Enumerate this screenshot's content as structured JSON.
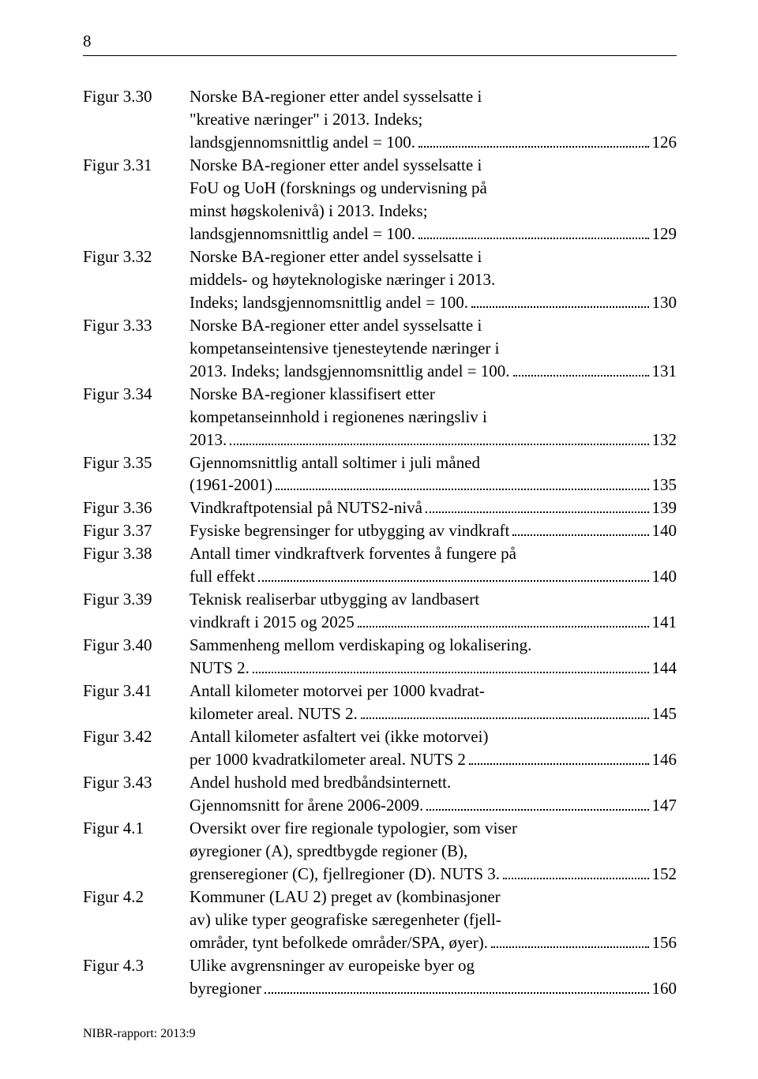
{
  "page_number": "8",
  "footer": "NIBR-rapport: 2013:9",
  "entries": [
    {
      "label": "Figur 3.30",
      "lines": [
        {
          "type": "plain",
          "text": "Norske BA-regioner etter andel sysselsatte i"
        },
        {
          "type": "plain",
          "text": "\"kreative næringer\" i 2013. Indeks;"
        },
        {
          "type": "dotted",
          "text": "landsgjennomsnittlig andel = 100.",
          "page": "126"
        }
      ]
    },
    {
      "label": "Figur 3.31",
      "lines": [
        {
          "type": "plain",
          "text": "Norske BA-regioner etter andel sysselsatte i"
        },
        {
          "type": "plain",
          "text": "FoU og UoH (forsknings og undervisning på"
        },
        {
          "type": "plain",
          "text": "minst høgskolenivå) i 2013. Indeks;"
        },
        {
          "type": "dotted",
          "text": "landsgjennomsnittlig andel = 100.",
          "page": "129"
        }
      ]
    },
    {
      "label": "Figur 3.32",
      "lines": [
        {
          "type": "plain",
          "text": "Norske BA-regioner etter andel sysselsatte i"
        },
        {
          "type": "plain",
          "text": "middels- og høyteknologiske næringer i 2013."
        },
        {
          "type": "dotted",
          "text": "Indeks; landsgjennomsnittlig andel = 100.",
          "page": "130"
        }
      ]
    },
    {
      "label": "Figur 3.33",
      "lines": [
        {
          "type": "plain",
          "text": "Norske BA-regioner etter andel sysselsatte i"
        },
        {
          "type": "plain",
          "text": "kompetanseintensive tjenesteytende næringer i"
        },
        {
          "type": "dotted",
          "text": "2013. Indeks; landsgjennomsnittlig andel = 100.",
          "page": "131"
        }
      ]
    },
    {
      "label": "Figur 3.34",
      "lines": [
        {
          "type": "plain",
          "text": "Norske BA-regioner klassifisert etter"
        },
        {
          "type": "plain",
          "text": "kompetanseinnhold i regionenes næringsliv i"
        },
        {
          "type": "dotted",
          "text": "2013.",
          "page": "132"
        }
      ]
    },
    {
      "label": "Figur 3.35",
      "lines": [
        {
          "type": "plain",
          "text": "Gjennomsnittlig antall soltimer i juli måned"
        },
        {
          "type": "dotted",
          "text": "(1961-2001)",
          "page": "135"
        }
      ]
    },
    {
      "label": "Figur 3.36",
      "lines": [
        {
          "type": "dotted",
          "text": "Vindkraftpotensial på NUTS2-nivå",
          "page": "139"
        }
      ]
    },
    {
      "label": "Figur 3.37",
      "lines": [
        {
          "type": "dotted",
          "text": "Fysiske begrensinger for utbygging av vindkraft",
          "page": "140"
        }
      ]
    },
    {
      "label": "Figur 3.38",
      "lines": [
        {
          "type": "plain",
          "text": "Antall timer vindkraftverk forventes å fungere på"
        },
        {
          "type": "dotted",
          "text": "full effekt",
          "page": "140"
        }
      ]
    },
    {
      "label": "Figur 3.39",
      "lines": [
        {
          "type": "plain",
          "text": "Teknisk realiserbar utbygging av landbasert"
        },
        {
          "type": "dotted",
          "text": " vindkraft i 2015 og 2025",
          "page": "141"
        }
      ]
    },
    {
      "label": "Figur 3.40",
      "lines": [
        {
          "type": "plain",
          "text": "Sammenheng mellom verdiskaping og lokalisering."
        },
        {
          "type": "dotted",
          "text": "NUTS 2.",
          "page": "144"
        }
      ]
    },
    {
      "label": "Figur 3.41",
      "lines": [
        {
          "type": "plain",
          "text": "Antall kilometer motorvei per 1000 kvadrat-"
        },
        {
          "type": "dotted",
          "text": "kilometer areal. NUTS 2.",
          "page": "145"
        }
      ]
    },
    {
      "label": "Figur 3.42",
      "lines": [
        {
          "type": "plain",
          "text": "Antall kilometer asfaltert vei (ikke motorvei)"
        },
        {
          "type": "dotted",
          "text": "per 1000 kvadratkilometer areal. NUTS 2",
          "page": "146"
        }
      ]
    },
    {
      "label": "Figur 3.43",
      "lines": [
        {
          "type": "plain",
          "text": "Andel hushold med bredbåndsinternett."
        },
        {
          "type": "dotted",
          "text": "Gjennomsnitt for årene 2006-2009.",
          "page": "147"
        }
      ]
    },
    {
      "label": "Figur 4.1",
      "lines": [
        {
          "type": "plain",
          "text": "Oversikt over fire regionale typologier, som viser"
        },
        {
          "type": "plain",
          "text": "øyregioner (A), spredtbygde regioner (B),"
        },
        {
          "type": "dotted",
          "text": "grenseregioner (C), fjellregioner (D). NUTS 3.",
          "page": "152"
        }
      ]
    },
    {
      "label": "Figur 4.2",
      "lines": [
        {
          "type": "plain",
          "text": "Kommuner (LAU 2) preget av (kombinasjoner"
        },
        {
          "type": "plain",
          "text": "av) ulike typer geografiske særegenheter (fjell-"
        },
        {
          "type": "dotted",
          "text": "områder, tynt befolkede områder/SPA, øyer).",
          "page": "156"
        }
      ]
    },
    {
      "label": "Figur 4.3",
      "lines": [
        {
          "type": "plain",
          "text": "Ulike avgrensninger av europeiske byer og"
        },
        {
          "type": "dotted",
          "text": "byregioner",
          "page": "160"
        }
      ]
    }
  ]
}
